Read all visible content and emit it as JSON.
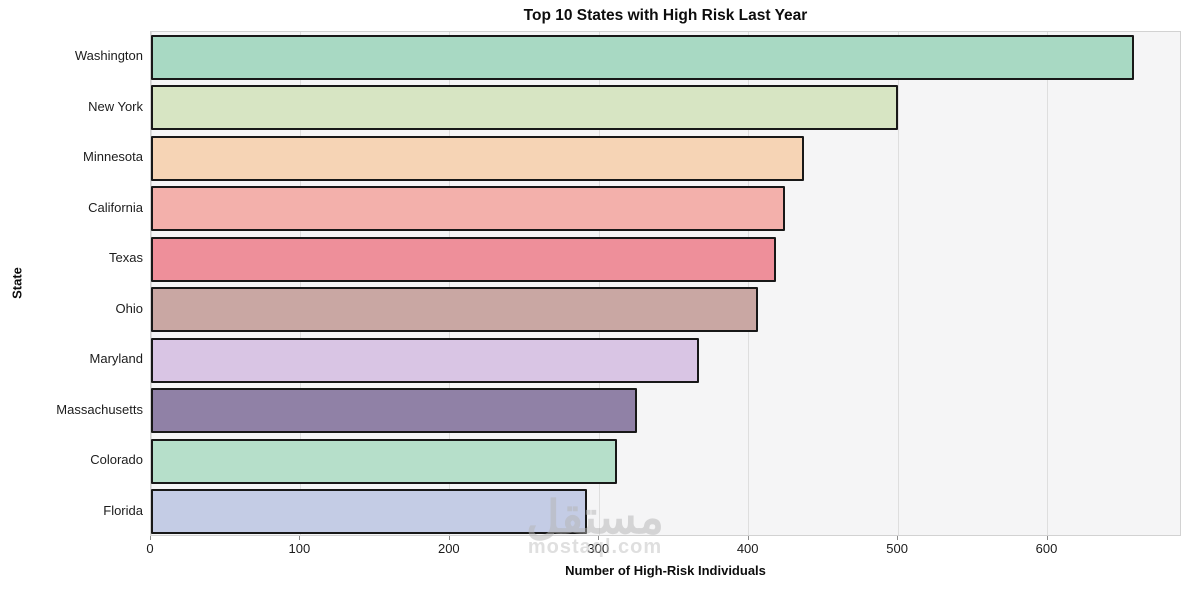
{
  "chart_data": {
    "type": "bar",
    "orientation": "horizontal",
    "title": "Top 10 States with High Risk Last Year",
    "xlabel": "Number of High-Risk Individuals",
    "ylabel": "State",
    "categories": [
      "Washington",
      "New York",
      "Minnesota",
      "California",
      "Texas",
      "Ohio",
      "Maryland",
      "Massachusetts",
      "Colorado",
      "Florida"
    ],
    "values": [
      658,
      500,
      437,
      424,
      418,
      406,
      367,
      325,
      312,
      292
    ],
    "bar_colors": [
      "#a8d9c3",
      "#d7e5c3",
      "#f6d4b5",
      "#f3b0ab",
      "#ee8f9a",
      "#c9a7a3",
      "#d9c5e4",
      "#9081a6",
      "#b6dfca",
      "#c4cce5"
    ],
    "bar_edge_color": "#181818",
    "xlim": [
      0,
      690
    ],
    "xticks": [
      0,
      100,
      200,
      300,
      400,
      500,
      600
    ],
    "grid": true,
    "legend": "none",
    "plot_background": "#f5f5f6",
    "gridline_color": "#dedede"
  },
  "watermark": {
    "arabic": "مستقل",
    "latin": "mostaql.com"
  }
}
